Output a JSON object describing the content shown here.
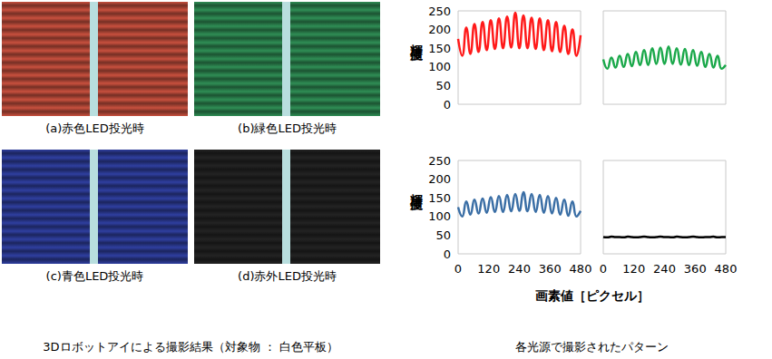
{
  "chart_data": [
    {
      "type": "line",
      "color": "#ff1a1a",
      "x": [
        0,
        16,
        32,
        48,
        64,
        80,
        96,
        112,
        128,
        144,
        160,
        176,
        192,
        208,
        224,
        240,
        256,
        272,
        288,
        304,
        320,
        336,
        352,
        368,
        384,
        400,
        416,
        432,
        448,
        464,
        480
      ],
      "values": [
        175,
        130,
        205,
        135,
        215,
        140,
        220,
        145,
        225,
        148,
        230,
        150,
        235,
        152,
        245,
        150,
        238,
        150,
        232,
        148,
        230,
        145,
        225,
        142,
        220,
        140,
        210,
        135,
        200,
        130,
        185
      ],
      "xlim": [
        0,
        480
      ],
      "xticks": [
        0,
        120,
        240,
        360,
        480
      ],
      "ylim": [
        0,
        250
      ],
      "yticks": [
        0,
        50,
        100,
        150,
        200,
        250
      ],
      "grid": false,
      "tick_labels": "y"
    },
    {
      "type": "line",
      "color": "#1aa84a",
      "x": [
        0,
        16,
        32,
        48,
        64,
        80,
        96,
        112,
        128,
        144,
        160,
        176,
        192,
        208,
        224,
        240,
        256,
        272,
        288,
        304,
        320,
        336,
        352,
        368,
        384,
        400,
        416,
        432,
        448,
        464,
        480
      ],
      "values": [
        120,
        95,
        125,
        98,
        130,
        100,
        135,
        102,
        140,
        105,
        145,
        105,
        150,
        108,
        152,
        108,
        155,
        108,
        150,
        106,
        148,
        105,
        145,
        103,
        140,
        100,
        135,
        98,
        130,
        95,
        105
      ],
      "xlim": [
        0,
        480
      ],
      "xticks": [
        0,
        120,
        240,
        360,
        480
      ],
      "ylim": [
        0,
        250
      ],
      "yticks": [
        0,
        50,
        100,
        150,
        200,
        250
      ],
      "grid": false,
      "tick_labels": false
    },
    {
      "type": "line",
      "color": "#3a6ea5",
      "x": [
        0,
        16,
        32,
        48,
        64,
        80,
        96,
        112,
        128,
        144,
        160,
        176,
        192,
        208,
        224,
        240,
        256,
        272,
        288,
        304,
        320,
        336,
        352,
        368,
        384,
        400,
        416,
        432,
        448,
        464,
        480
      ],
      "values": [
        125,
        100,
        140,
        105,
        145,
        108,
        148,
        110,
        152,
        112,
        155,
        112,
        158,
        114,
        160,
        115,
        165,
        114,
        160,
        112,
        158,
        110,
        155,
        108,
        150,
        105,
        145,
        102,
        140,
        100,
        115
      ],
      "xlim": [
        0,
        480
      ],
      "xticks": [
        0,
        120,
        240,
        360,
        480
      ],
      "ylim": [
        0,
        250
      ],
      "yticks": [
        0,
        50,
        100,
        150,
        200,
        250
      ],
      "grid": false
    },
    {
      "type": "line",
      "color": "#000000",
      "x": [
        0,
        16,
        32,
        48,
        64,
        80,
        96,
        112,
        128,
        144,
        160,
        176,
        192,
        208,
        224,
        240,
        256,
        272,
        288,
        304,
        320,
        336,
        352,
        368,
        384,
        400,
        416,
        432,
        448,
        464,
        480
      ],
      "values": [
        45,
        44,
        46,
        45,
        45,
        44,
        46,
        45,
        44,
        45,
        46,
        45,
        44,
        45,
        46,
        45,
        45,
        44,
        46,
        45,
        44,
        45,
        46,
        45,
        44,
        45,
        45,
        46,
        44,
        45,
        45
      ],
      "xlim": [
        0,
        480
      ],
      "xticks": [
        0,
        120,
        240,
        360,
        480
      ],
      "ylim": [
        0,
        250
      ],
      "yticks": [
        0,
        50,
        100,
        150,
        200,
        250
      ],
      "grid": false,
      "tick_labels": "x"
    }
  ],
  "ylabel": "輝度値",
  "xlabel": "画素値［ピクセル］",
  "charts_caption": "各光源で撮影されたパターン",
  "photos": {
    "caption": "3Dロボットアイによる撮影結果（対象物 ： 白色平板）",
    "panels": [
      {
        "label": "(a)赤色LED投光時",
        "color": "#c8503e"
      },
      {
        "label": "(b)緑色LED投光時",
        "color": "#2f8e55"
      },
      {
        "label": "(c)青色LED投光時",
        "color": "#2f3fa0"
      },
      {
        "label": "(d)赤外LED投光時",
        "color": "#232323"
      }
    ]
  }
}
